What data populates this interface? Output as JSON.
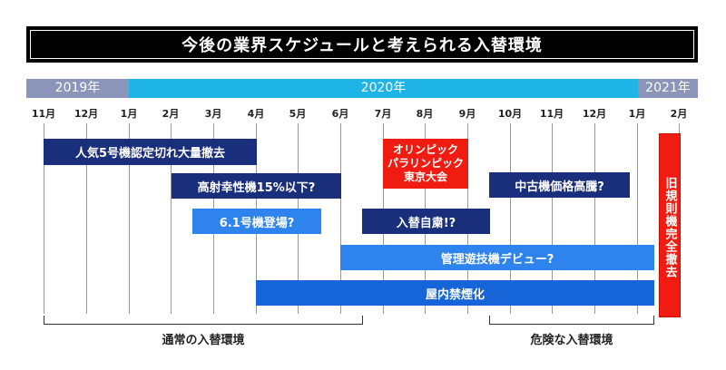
{
  "title": "今後の業界スケジュールと考えられる入替環境",
  "years": {
    "y2019": "2019年",
    "y2020": "2020年",
    "y2021": "2021年"
  },
  "months": [
    "11月",
    "12月",
    "1月",
    "2月",
    "3月",
    "4月",
    "5月",
    "6月",
    "7月",
    "8月",
    "9月",
    "10月",
    "11月",
    "12月",
    "1月",
    "2月"
  ],
  "events": {
    "ninki5": "人気5号機認定切れ大量撤去",
    "koushakousei": "高射幸性機15%以下?",
    "g61": "6.1号機登場?",
    "olympic": [
      "オリンピック",
      "パラリンピック",
      "東京大会"
    ],
    "irekae_jishuku": "入替自粛!?",
    "chuko_kakaku": "中古機価格高騰?",
    "kanri_yugiki": "管理遊技機デビュー?",
    "okunai_kinen": "屋内禁煙化",
    "kyu_kisoku": "旧規則機完全撤去"
  },
  "periods": {
    "normal": "通常の入替環境",
    "danger": "危険な入替環境"
  },
  "colors": {
    "navy": "#1a2f7c",
    "blue": "#1565d8",
    "sky": "#2e84ec",
    "red": "#f01c12",
    "year_gray": "#8b95b9",
    "year_cyan": "#1fb4e6"
  }
}
